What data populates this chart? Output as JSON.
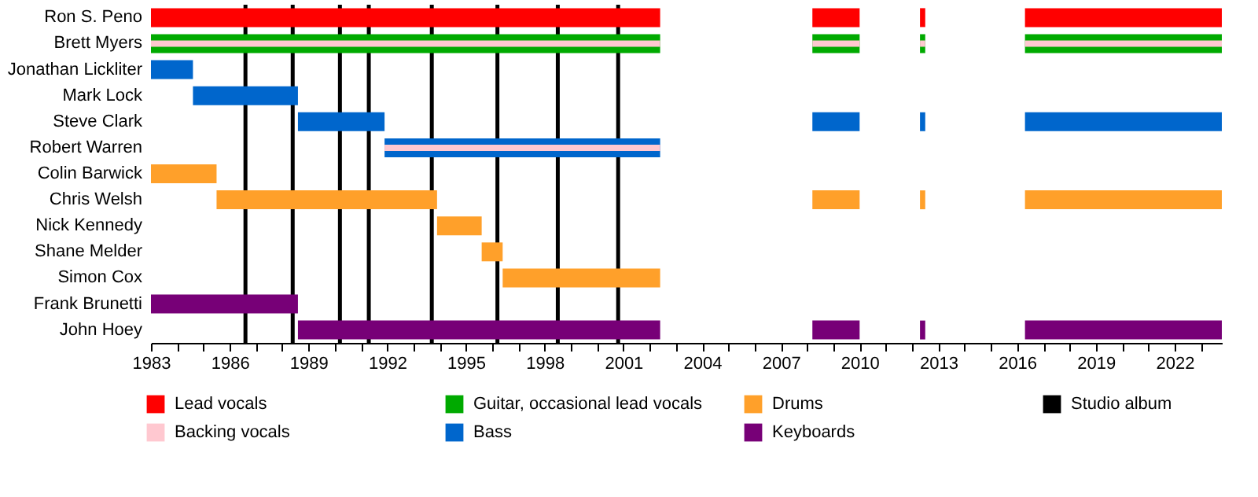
{
  "chart_data": {
    "type": "bar",
    "orientation": "horizontal",
    "legend": "bottom",
    "categories": [
      "Ron S. Peno",
      "Brett Myers",
      "Jonathan Lickliter",
      "Mark Lock",
      "Steve Clark",
      "Robert Warren",
      "Colin Barwick",
      "Chris Welsh",
      "Nick Kennedy",
      "Shane Melder",
      "Simon Cox",
      "Frank Brunetti",
      "John Hoey"
    ],
    "xlim": [
      1983,
      2023.8
    ],
    "xticks": [
      1983,
      {
        "value": 1984,
        "label": null
      },
      {
        "value": 1985,
        "label": null
      },
      1986,
      {
        "value": 1987,
        "label": null
      },
      {
        "value": 1988,
        "label": null
      },
      1989,
      {
        "value": 1990,
        "label": null
      },
      {
        "value": 1991,
        "label": null
      },
      1992,
      {
        "value": 1993,
        "label": null
      },
      {
        "value": 1994,
        "label": null
      },
      1995,
      {
        "value": 1996,
        "label": null
      },
      {
        "value": 1997,
        "label": null
      },
      1998,
      {
        "value": 1999,
        "label": null
      },
      {
        "value": 2000,
        "label": null
      },
      2001,
      {
        "value": 2002,
        "label": null
      },
      {
        "value": 2003,
        "label": null
      },
      2004,
      {
        "value": 2005,
        "label": null
      },
      {
        "value": 2006,
        "label": null
      },
      2007,
      {
        "value": 2008,
        "label": null
      },
      {
        "value": 2009,
        "label": null
      },
      2010,
      {
        "value": 2011,
        "label": null
      },
      {
        "value": 2012,
        "label": null
      },
      2013,
      {
        "value": 2014,
        "label": null
      },
      {
        "value": 2015,
        "label": null
      },
      2016,
      {
        "value": 2017,
        "label": null
      },
      {
        "value": 2018,
        "label": null
      },
      2019,
      {
        "value": 2020,
        "label": null
      },
      {
        "value": 2021,
        "label": null
      },
      2022,
      {
        "value": 2023,
        "label": null
      }
    ],
    "series": [
      {
        "name": "Lead vocals",
        "color": "#ff0000",
        "base": [
          1983,
          null,
          null,
          null,
          null,
          null,
          null,
          null,
          null,
          null,
          null,
          null,
          null
        ],
        "values": [
          19.4,
          null,
          null,
          null,
          null,
          null,
          null,
          null,
          null,
          null,
          null,
          null,
          null
        ]
      },
      {
        "name": "Backing vocals",
        "color": "#ffc8d0",
        "base": [
          null,
          1983,
          null,
          null,
          null,
          1991.9,
          null,
          null,
          null,
          null,
          null,
          null,
          null
        ],
        "values": [
          null,
          19.4,
          null,
          null,
          null,
          10.5,
          null,
          null,
          null,
          null,
          null,
          null,
          null
        ]
      },
      {
        "name": "Guitar, occasional lead vocals",
        "color": "#00aa00",
        "base": [
          null,
          1983,
          null,
          null,
          null,
          null,
          null,
          null,
          null,
          null,
          null,
          null,
          null
        ],
        "values": [
          null,
          19.4,
          null,
          null,
          null,
          null,
          null,
          null,
          null,
          null,
          null,
          null,
          null
        ]
      },
      {
        "name": "Bass",
        "color": "#0066cc",
        "base": [
          null,
          null,
          1983,
          1984.6,
          1988.6,
          1991.9,
          null,
          null,
          null,
          null,
          null,
          null,
          null
        ],
        "values": [
          null,
          null,
          1.6,
          4.0,
          3.3,
          10.5,
          null,
          null,
          null,
          null,
          null,
          null,
          null
        ]
      },
      {
        "name": "Drums",
        "color": "#ffa02a",
        "base": [
          null,
          null,
          null,
          null,
          null,
          null,
          1983,
          1985.5,
          1993.9,
          1995.6,
          1996.4,
          null,
          null
        ],
        "values": [
          null,
          null,
          null,
          null,
          null,
          null,
          2.5,
          8.4,
          1.7,
          0.8,
          6.0,
          null,
          null
        ]
      },
      {
        "name": "Keyboards",
        "color": "#770077",
        "base": [
          null,
          null,
          null,
          null,
          null,
          null,
          null,
          null,
          null,
          null,
          null,
          1983,
          1988.6
        ],
        "values": [
          null,
          null,
          null,
          null,
          null,
          null,
          null,
          null,
          null,
          null,
          null,
          5.6,
          13.8
        ]
      },
      {
        "color": "#ff0000",
        "base": [
          2008.2,
          null,
          null,
          null,
          null,
          null,
          null,
          null,
          null,
          null,
          null,
          null,
          null
        ],
        "values": [
          1.8,
          null,
          null,
          null,
          null,
          null,
          null,
          null,
          null,
          null,
          null,
          null,
          null
        ]
      },
      {
        "color": "#ff0000",
        "base": [
          2012.3,
          null,
          null,
          null,
          null,
          null,
          null,
          null,
          null,
          null,
          null,
          null,
          null
        ],
        "values": [
          0.2,
          null,
          null,
          null,
          null,
          null,
          null,
          null,
          null,
          null,
          null,
          null,
          null
        ]
      },
      {
        "color": "#ff0000",
        "base": [
          2016.3,
          null,
          null,
          null,
          null,
          null,
          null,
          null,
          null,
          null,
          null,
          null,
          null
        ],
        "values": [
          7.5,
          null,
          null,
          null,
          null,
          null,
          null,
          null,
          null,
          null,
          null,
          null,
          null
        ]
      },
      {
        "color": "#ffc8d0",
        "base": [
          null,
          2008.2,
          null,
          null,
          null,
          null,
          null,
          null,
          null,
          null,
          null,
          null,
          null
        ],
        "values": [
          null,
          1.8,
          null,
          null,
          null,
          null,
          null,
          null,
          null,
          null,
          null,
          null,
          null
        ]
      },
      {
        "color": "#ffc8d0",
        "base": [
          null,
          2012.3,
          null,
          null,
          null,
          null,
          null,
          null,
          null,
          null,
          null,
          null,
          null
        ],
        "values": [
          null,
          0.2,
          null,
          null,
          null,
          null,
          null,
          null,
          null,
          null,
          null,
          null,
          null
        ]
      },
      {
        "color": "#ffc8d0",
        "base": [
          null,
          2016.3,
          null,
          null,
          null,
          null,
          null,
          null,
          null,
          null,
          null,
          null,
          null
        ],
        "values": [
          null,
          7.5,
          null,
          null,
          null,
          null,
          null,
          null,
          null,
          null,
          null,
          null,
          null
        ]
      },
      {
        "color": "#00aa00",
        "base": [
          null,
          2008.2,
          null,
          null,
          null,
          null,
          null,
          null,
          null,
          null,
          null,
          null,
          null
        ],
        "values": [
          null,
          1.8,
          null,
          null,
          null,
          null,
          null,
          null,
          null,
          null,
          null,
          null,
          null
        ]
      },
      {
        "color": "#00aa00",
        "base": [
          null,
          2012.3,
          null,
          null,
          null,
          null,
          null,
          null,
          null,
          null,
          null,
          null,
          null
        ],
        "values": [
          null,
          0.2,
          null,
          null,
          null,
          null,
          null,
          null,
          null,
          null,
          null,
          null,
          null
        ]
      },
      {
        "color": "#00aa00",
        "base": [
          null,
          2016.3,
          null,
          null,
          null,
          null,
          null,
          null,
          null,
          null,
          null,
          null,
          null
        ],
        "values": [
          null,
          7.5,
          null,
          null,
          null,
          null,
          null,
          null,
          null,
          null,
          null,
          null,
          null
        ]
      },
      {
        "color": "#0066cc",
        "base": [
          null,
          null,
          null,
          null,
          2008.2,
          null,
          null,
          null,
          null,
          null,
          null,
          null,
          null
        ],
        "values": [
          null,
          null,
          null,
          null,
          1.8,
          null,
          null,
          null,
          null,
          null,
          null,
          null,
          null
        ]
      },
      {
        "color": "#0066cc",
        "base": [
          null,
          null,
          null,
          null,
          2012.3,
          null,
          null,
          null,
          null,
          null,
          null,
          null,
          null
        ],
        "values": [
          null,
          null,
          null,
          null,
          0.2,
          null,
          null,
          null,
          null,
          null,
          null,
          null,
          null
        ]
      },
      {
        "color": "#0066cc",
        "base": [
          null,
          null,
          null,
          null,
          2016.3,
          null,
          null,
          null,
          null,
          null,
          null,
          null,
          null
        ],
        "values": [
          null,
          null,
          null,
          null,
          7.5,
          null,
          null,
          null,
          null,
          null,
          null,
          null,
          null
        ]
      },
      {
        "color": "#ffa02a",
        "base": [
          null,
          null,
          null,
          null,
          null,
          null,
          null,
          2008.2,
          null,
          null,
          null,
          null,
          null
        ],
        "values": [
          null,
          null,
          null,
          null,
          null,
          null,
          null,
          1.8,
          null,
          null,
          null,
          null,
          null
        ]
      },
      {
        "color": "#ffa02a",
        "base": [
          null,
          null,
          null,
          null,
          null,
          null,
          null,
          2012.3,
          null,
          null,
          null,
          null,
          null
        ],
        "values": [
          null,
          null,
          null,
          null,
          null,
          null,
          null,
          0.2,
          null,
          null,
          null,
          null,
          null
        ]
      },
      {
        "color": "#ffa02a",
        "base": [
          null,
          null,
          null,
          null,
          null,
          null,
          null,
          2016.3,
          null,
          null,
          null,
          null,
          null
        ],
        "values": [
          null,
          null,
          null,
          null,
          null,
          null,
          null,
          7.5,
          null,
          null,
          null,
          null,
          null
        ]
      },
      {
        "color": "#770077",
        "base": [
          null,
          null,
          null,
          null,
          null,
          null,
          null,
          null,
          null,
          null,
          null,
          null,
          2008.2
        ],
        "values": [
          null,
          null,
          null,
          null,
          null,
          null,
          null,
          null,
          null,
          null,
          null,
          null,
          1.8
        ]
      },
      {
        "color": "#770077",
        "base": [
          null,
          null,
          null,
          null,
          null,
          null,
          null,
          null,
          null,
          null,
          null,
          null,
          2012.3
        ],
        "values": [
          null,
          null,
          null,
          null,
          null,
          null,
          null,
          null,
          null,
          null,
          null,
          null,
          0.2
        ]
      },
      {
        "color": "#770077",
        "base": [
          null,
          null,
          null,
          null,
          null,
          null,
          null,
          null,
          null,
          null,
          null,
          null,
          2016.3
        ],
        "values": [
          null,
          null,
          null,
          null,
          null,
          null,
          null,
          null,
          null,
          null,
          null,
          null,
          7.5
        ]
      }
    ],
    "ref_lines": [
      {
        "axis": "x",
        "value": 1986.6,
        "label": "Studio album",
        "color": "#000000"
      },
      {
        "axis": "x",
        "value": 1988.4,
        "color": "#000000"
      },
      {
        "axis": "x",
        "value": 1990.2,
        "color": "#000000"
      },
      {
        "axis": "x",
        "value": 1991.3,
        "color": "#000000"
      },
      {
        "axis": "x",
        "value": 1993.7,
        "color": "#000000"
      },
      {
        "axis": "x",
        "value": 1996.2,
        "color": "#000000"
      },
      {
        "axis": "x",
        "value": 1998.5,
        "color": "#000000"
      },
      {
        "axis": "x",
        "value": 2000.8,
        "color": "#000000"
      }
    ]
  }
}
